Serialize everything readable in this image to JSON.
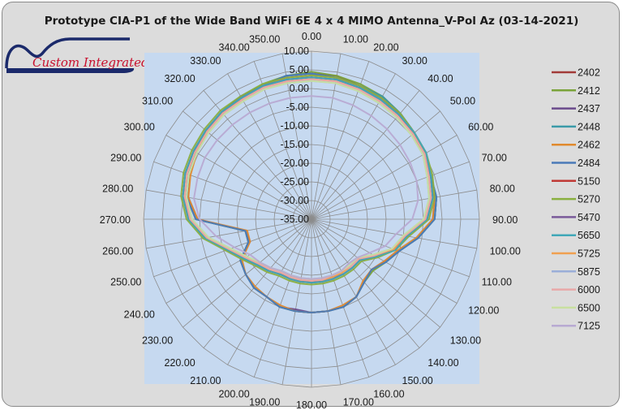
{
  "chart_data": {
    "type": "radar",
    "title": "Prototype CIA-P1 of the Wide Band WiFi 6E 4 x 4 MIMO Antenna_V-Pol Az (03-14-2021)",
    "angles": [
      "0.00",
      "10.00",
      "20.00",
      "30.00",
      "40.00",
      "50.00",
      "60.00",
      "70.00",
      "80.00",
      "90.00",
      "100.00",
      "110.00",
      "120.00",
      "130.00",
      "140.00",
      "150.00",
      "160.00",
      "170.00",
      "180.00",
      "190.00",
      "200.00",
      "210.00",
      "220.00",
      "230.00",
      "240.00",
      "250.00",
      "260.00",
      "270.00",
      "280.00",
      "290.00",
      "300.00",
      "310.00",
      "320.00",
      "330.00",
      "340.00",
      "350.00"
    ],
    "radial_ticks": [
      "-35.00",
      "-30.00",
      "-25.00",
      "-20.00",
      "-15.00",
      "-10.00",
      "-5.00",
      "0.00",
      "5.00",
      "10.00"
    ],
    "rlim": [
      -35,
      10
    ],
    "grid": true,
    "legend_position": "right",
    "series": [
      {
        "name": "2402",
        "color": "#a23a38",
        "values": [
          4,
          4,
          3,
          3,
          2,
          1,
          0,
          -1,
          -1,
          -2,
          -6,
          -10,
          -12,
          -14,
          -13,
          -11,
          -10,
          -10,
          -10,
          -10,
          -10,
          -11,
          -11,
          -12,
          -13,
          -17,
          -17,
          -4,
          -1,
          0,
          1,
          2,
          2,
          3,
          3,
          4
        ]
      },
      {
        "name": "2412",
        "color": "#7aa33a",
        "values": [
          4.5,
          4,
          3.5,
          3,
          2,
          1,
          0,
          -1,
          -1,
          -2,
          -6,
          -10,
          -12,
          -13.5,
          -13,
          -11,
          -10,
          -10,
          -10,
          -10,
          -10,
          -11,
          -11,
          -12,
          -13,
          -17,
          -17,
          -4,
          -1,
          0,
          1,
          2,
          2.5,
          3,
          3.5,
          4
        ]
      },
      {
        "name": "2437",
        "color": "#6a4a8c",
        "values": [
          4,
          3.5,
          3,
          2.5,
          2,
          1,
          0,
          -1,
          -1.5,
          -2.5,
          -6,
          -10,
          -12.5,
          -14,
          -13,
          -11,
          -10,
          -10,
          -10,
          -10.5,
          -10,
          -11,
          -11,
          -12,
          -13,
          -17.5,
          -17,
          -4.5,
          -1.5,
          0,
          1,
          2,
          2,
          3,
          3,
          4
        ]
      },
      {
        "name": "2448",
        "color": "#3a9aa8",
        "values": [
          4,
          3.5,
          3,
          3,
          2,
          1,
          0,
          -1,
          -1,
          -2,
          -6,
          -10,
          -12,
          -14,
          -13,
          -11,
          -10,
          -10,
          -10,
          -10,
          -10,
          -11,
          -11,
          -12,
          -13,
          -17,
          -17,
          -4,
          -1,
          0,
          1,
          2,
          2,
          3,
          3,
          4
        ]
      },
      {
        "name": "2462",
        "color": "#e08a2e",
        "values": [
          3.5,
          3.5,
          3,
          2.5,
          1.5,
          0.5,
          0,
          -1,
          -1.5,
          -2.5,
          -6.5,
          -10.5,
          -12.5,
          -14,
          -13.5,
          -11,
          -10.5,
          -10,
          -10,
          -10,
          -10.5,
          -11,
          -11.5,
          -12,
          -13.5,
          -17.5,
          -17.5,
          -4.5,
          -1.5,
          -0.5,
          0.5,
          1.5,
          2,
          2.5,
          3,
          3.5
        ]
      },
      {
        "name": "2484",
        "color": "#4a7ab8",
        "values": [
          4,
          3.5,
          3,
          2.5,
          2,
          1,
          0,
          -1,
          -1,
          -2,
          -6,
          -10,
          -12,
          -14,
          -13,
          -11,
          -10,
          -10,
          -10,
          -10,
          -10,
          -11,
          -11,
          -12,
          -13,
          -17,
          -17,
          -4,
          -1,
          0,
          1,
          2,
          2,
          3,
          3,
          4
        ]
      },
      {
        "name": "5150",
        "color": "#c03a36",
        "values": [
          3,
          3,
          2.5,
          2,
          1.5,
          1,
          0.5,
          -1,
          -2,
          -4,
          -9,
          -11,
          -15,
          -18,
          -18,
          -18,
          -18,
          -18,
          -18,
          -18,
          -18,
          -18,
          -17,
          -16,
          -14,
          -11,
          -6,
          -2,
          0,
          1,
          1.5,
          2,
          2.5,
          2.5,
          3,
          3
        ]
      },
      {
        "name": "5270",
        "color": "#8ab040",
        "values": [
          3.5,
          3.5,
          3,
          2.5,
          2,
          1,
          0.5,
          -0.5,
          -1.5,
          -3.5,
          -8.5,
          -11,
          -14.5,
          -17.5,
          -17.5,
          -17.5,
          -17.5,
          -17.5,
          -17.5,
          -17.5,
          -17.5,
          -17.5,
          -16.5,
          -15.5,
          -13.5,
          -10.5,
          -5.5,
          -1.5,
          0.5,
          1.5,
          2,
          2.5,
          3,
          3,
          3.5,
          3.5
        ]
      },
      {
        "name": "5470",
        "color": "#7a5a9a",
        "values": [
          3,
          3,
          2.5,
          2,
          1.5,
          0.5,
          0,
          -1,
          -2,
          -4,
          -9,
          -11.5,
          -15,
          -18,
          -18,
          -18,
          -18.5,
          -18.5,
          -18,
          -18.5,
          -18.5,
          -18,
          -17,
          -16,
          -14,
          -11,
          -6.5,
          -2.5,
          0,
          1,
          1.5,
          2,
          2.5,
          2.5,
          3,
          3
        ]
      },
      {
        "name": "5650",
        "color": "#40a8b8",
        "values": [
          3,
          3,
          2.5,
          2,
          1.5,
          1,
          0.5,
          -1,
          -2,
          -4,
          -9,
          -11,
          -15,
          -18,
          -18,
          -18,
          -18,
          -18,
          -18,
          -18,
          -18,
          -18,
          -17,
          -16,
          -14,
          -11,
          -6,
          -2,
          0,
          1,
          1.5,
          2,
          2.5,
          2.5,
          3,
          3
        ]
      },
      {
        "name": "5725",
        "color": "#f0a050",
        "values": [
          2.5,
          2.5,
          2,
          1.5,
          1,
          0.5,
          0,
          -1.5,
          -2.5,
          -4.5,
          -9.5,
          -11.5,
          -15.5,
          -18.5,
          -18.5,
          -18.5,
          -18.5,
          -18.5,
          -18.5,
          -18.5,
          -18.5,
          -18.5,
          -17.5,
          -16.5,
          -14.5,
          -11.5,
          -6.5,
          -2.5,
          -0.5,
          0.5,
          1,
          1.5,
          2,
          2,
          2.5,
          2.5
        ]
      },
      {
        "name": "5875",
        "color": "#9aaed8",
        "values": [
          2,
          2,
          1.5,
          1,
          0.5,
          0,
          -0.5,
          -2,
          -3,
          -5,
          -10,
          -12,
          -16,
          -19,
          -19,
          -19,
          -19,
          -19,
          -19,
          -19,
          -19,
          -19,
          -18,
          -17,
          -15,
          -12,
          -7,
          -3,
          -1,
          0,
          0.5,
          1,
          1.5,
          1.5,
          2,
          2
        ]
      },
      {
        "name": "6000",
        "color": "#e8a8a8",
        "values": [
          2.5,
          2.5,
          2,
          1.5,
          1,
          0.5,
          0,
          -1.5,
          -2.5,
          -4.5,
          -9.5,
          -12,
          -15.5,
          -18.5,
          -18.5,
          -19,
          -19,
          -18.5,
          -18.5,
          -18.5,
          -18.5,
          -18.5,
          -17.5,
          -16.5,
          -14.5,
          -11.5,
          -6.5,
          -2.5,
          -0.5,
          0.5,
          1,
          1.5,
          2,
          2,
          2.5,
          2.5
        ]
      },
      {
        "name": "6500",
        "color": "#c8e0a0",
        "values": [
          2,
          2,
          1.5,
          1,
          0.5,
          0,
          -0.5,
          -2,
          -3,
          -5,
          -10,
          -12,
          -16,
          -19,
          -19,
          -19,
          -19,
          -19,
          -19,
          -19,
          -19,
          -19,
          -18,
          -17,
          -15,
          -12,
          -7,
          -3,
          -1,
          0,
          0.5,
          1,
          1.5,
          1.5,
          2,
          2
        ]
      },
      {
        "name": "7125",
        "color": "#b8aad2",
        "values": [
          -2,
          -2,
          -2.5,
          -3,
          -3.5,
          -4,
          -4.5,
          -5,
          -6,
          -8,
          -12,
          -14,
          -17,
          -19,
          -19.5,
          -19,
          -19,
          -19,
          -19,
          -19,
          -19,
          -19,
          -18,
          -17,
          -16,
          -13,
          -9,
          -5,
          -3,
          -2.5,
          -2,
          -2,
          -2,
          -2,
          -2,
          -2
        ]
      }
    ]
  }
}
